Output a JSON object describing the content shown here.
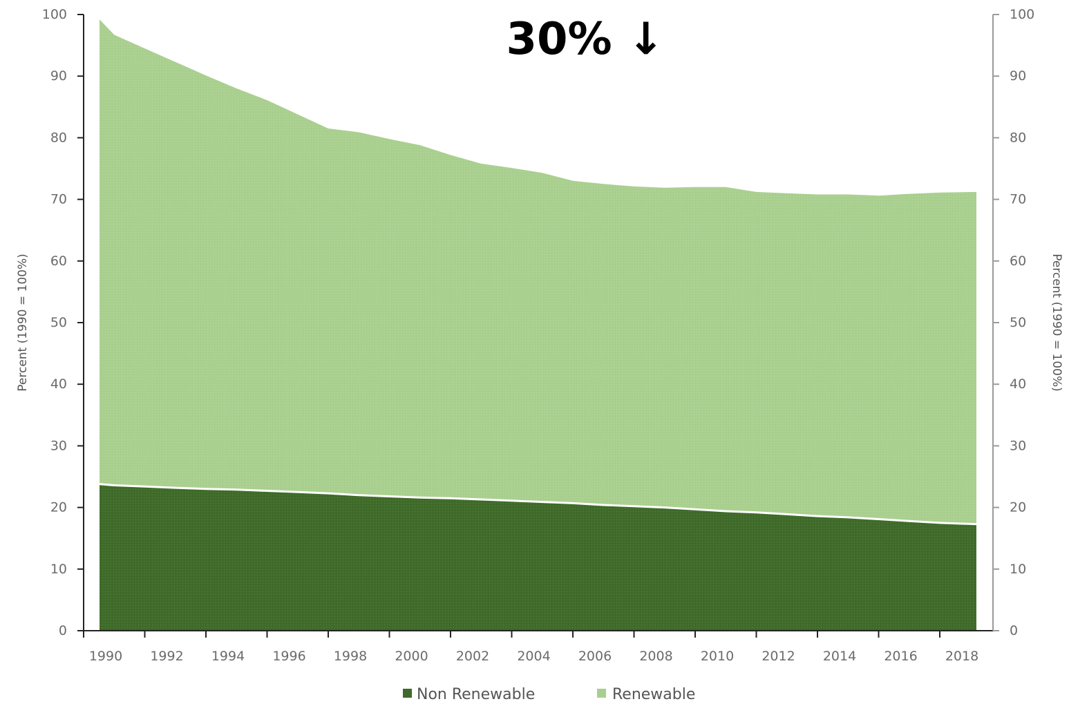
{
  "headline": "30% ↓",
  "legend": {
    "non_renewable": "Non Renewable",
    "renewable": "Renewable"
  },
  "colors": {
    "renewable": "#a9cf8f",
    "non_renewable": "#3f6a2a",
    "axis": "#222222",
    "right_axis": "#9a9a9a",
    "headline": "#000000"
  },
  "chart_data": {
    "type": "area",
    "stacked": true,
    "x": [
      1990,
      1991,
      1992,
      1993,
      1994,
      1995,
      1996,
      1997,
      1998,
      1999,
      2000,
      2001,
      2002,
      2003,
      2004,
      2005,
      2006,
      2007,
      2008,
      2009,
      2010,
      2011,
      2012,
      2013,
      2014,
      2015,
      2016,
      2017,
      2018,
      2019
    ],
    "series": [
      {
        "name": "Non Renewable",
        "color": "#3f6a2a",
        "values": [
          23.8,
          23.6,
          23.4,
          23.2,
          23.0,
          22.9,
          22.7,
          22.5,
          22.3,
          22.0,
          21.8,
          21.6,
          21.5,
          21.3,
          21.1,
          20.9,
          20.7,
          20.4,
          20.2,
          20.0,
          19.7,
          19.4,
          19.2,
          18.9,
          18.6,
          18.4,
          18.1,
          17.8,
          17.5,
          17.3
        ]
      },
      {
        "name": "Renewable",
        "color": "#a9cf8f",
        "values": [
          75.4,
          73.1,
          71.1,
          69.1,
          67.1,
          65.1,
          63.4,
          61.3,
          59.2,
          58.9,
          58.0,
          57.2,
          55.7,
          54.5,
          54.0,
          53.4,
          52.3,
          52.1,
          51.9,
          51.9,
          52.3,
          52.6,
          52.0,
          52.1,
          52.2,
          52.4,
          52.5,
          53.1,
          53.6,
          53.9
        ]
      }
    ],
    "xticks": [
      "1990",
      "1992",
      "1994",
      "1996",
      "1998",
      "2000",
      "2002",
      "2004",
      "2006",
      "2008",
      "2010",
      "2012",
      "2014",
      "2016",
      "2018"
    ],
    "yticks": [
      "0",
      "10",
      "20",
      "30",
      "40",
      "50",
      "60",
      "70",
      "80",
      "90",
      "100"
    ],
    "ylim": [
      0,
      100
    ],
    "ylabel_left": "Percent (1990 = 100%)",
    "ylabel_right": "Percent (1990 = 100%)",
    "legend_position": "bottom-center",
    "grid": false
  }
}
